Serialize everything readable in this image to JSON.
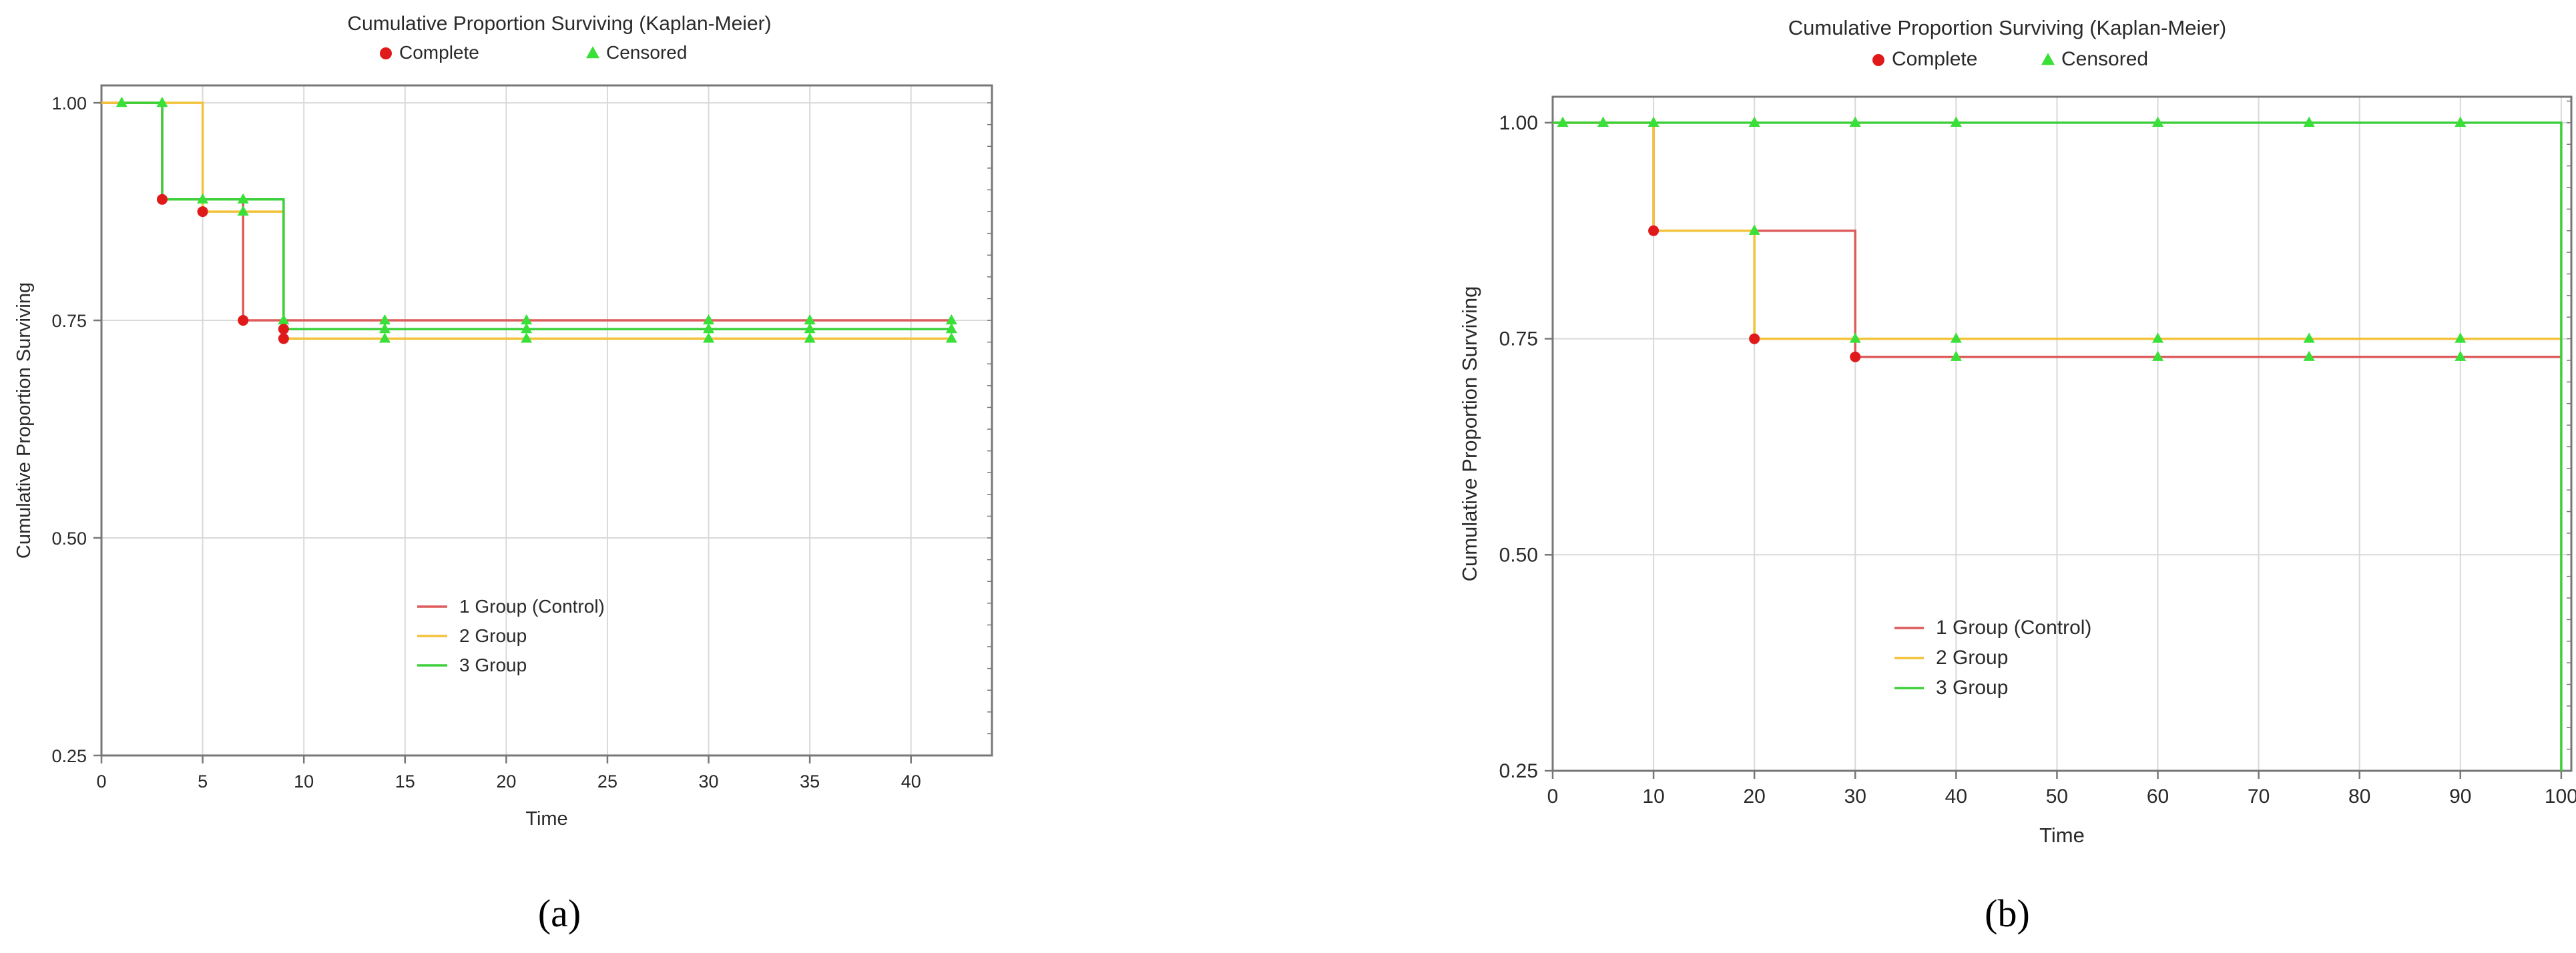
{
  "colors": {
    "group1": "#dd5b5b",
    "group2": "#f2c23a",
    "group3": "#3ccf3a",
    "complete_marker": "#e01a1a",
    "censored_marker": "#38e038",
    "grid": "#d9d9d9",
    "frame": "#777777"
  },
  "chart_data": [
    {
      "type": "line",
      "step": true,
      "panel_label": "(a)",
      "title": "Cumulative Proportion Surviving (Kaplan-Meier)",
      "marker_legend": [
        {
          "label": "Complete",
          "marker": "circle"
        },
        {
          "label": "Censored",
          "marker": "triangle"
        }
      ],
      "xlabel": "Time",
      "ylabel": "Cumulative Proportion Surviving",
      "xlim": [
        0,
        44
      ],
      "ylim": [
        0.25,
        1.02
      ],
      "xticks": [
        0,
        5,
        10,
        15,
        20,
        25,
        30,
        35,
        40
      ],
      "yticks": [
        0.25,
        0.5,
        0.75,
        1.0
      ],
      "ytick_labels": [
        "0.25",
        "0.50",
        "0.75",
        "1.00"
      ],
      "grid": true,
      "legend_position": "center-left",
      "series": [
        {
          "name": "1 Group (Control)",
          "color_key": "group1",
          "steps": [
            [
              0,
              1.0
            ],
            [
              3,
              0.889
            ],
            [
              7,
              0.75
            ],
            [
              42,
              0.75
            ]
          ],
          "complete": [
            [
              3,
              0.889
            ],
            [
              7,
              0.75
            ]
          ],
          "censored": [
            [
              9,
              0.75
            ],
            [
              14,
              0.75
            ],
            [
              21,
              0.75
            ],
            [
              30,
              0.75
            ],
            [
              35,
              0.75
            ],
            [
              42,
              0.75
            ]
          ]
        },
        {
          "name": "2 Group",
          "color_key": "group2",
          "steps": [
            [
              0,
              1.0
            ],
            [
              5,
              0.875
            ],
            [
              9,
              0.729
            ],
            [
              42,
              0.729
            ]
          ],
          "complete": [
            [
              5,
              0.875
            ],
            [
              9,
              0.729
            ]
          ],
          "censored": [
            [
              14,
              0.729
            ],
            [
              21,
              0.729
            ],
            [
              30,
              0.729
            ],
            [
              35,
              0.729
            ],
            [
              42,
              0.729
            ]
          ]
        },
        {
          "name": "3 Group",
          "color_key": "group3",
          "steps": [
            [
              1,
              1.0
            ],
            [
              3,
              0.889
            ],
            [
              9,
              0.74
            ],
            [
              42,
              0.74
            ]
          ],
          "complete": [
            [
              9,
              0.74
            ]
          ],
          "censored": [
            [
              1,
              1.0
            ],
            [
              3,
              1.0
            ],
            [
              5,
              0.889
            ],
            [
              7,
              0.889
            ],
            [
              7,
              0.875
            ],
            [
              14,
              0.74
            ],
            [
              21,
              0.74
            ],
            [
              30,
              0.74
            ],
            [
              35,
              0.74
            ],
            [
              42,
              0.74
            ]
          ]
        }
      ]
    },
    {
      "type": "line",
      "step": true,
      "panel_label": "(b)",
      "title": "Cumulative Proportion Surviving (Kaplan-Meier)",
      "marker_legend": [
        {
          "label": "Complete",
          "marker": "circle"
        },
        {
          "label": "Censored",
          "marker": "triangle"
        }
      ],
      "xlabel": "Time",
      "ylabel": "Cumulative Proportion Surviving",
      "xlim": [
        0,
        101
      ],
      "ylim": [
        0.25,
        1.03
      ],
      "xticks": [
        0,
        10,
        20,
        30,
        40,
        50,
        60,
        70,
        80,
        90,
        100
      ],
      "yticks": [
        0.25,
        0.5,
        0.75,
        1.0
      ],
      "ytick_labels": [
        "0.25",
        "0.50",
        "0.75",
        "1.00"
      ],
      "grid": true,
      "legend_position": "bottom-left",
      "series": [
        {
          "name": "1 Group (Control)",
          "color_key": "group1",
          "steps": [
            [
              0,
              1.0
            ],
            [
              10,
              0.875
            ],
            [
              30,
              0.729
            ],
            [
              100,
              0.729
            ]
          ],
          "complete": [
            [
              10,
              0.875
            ],
            [
              30,
              0.729
            ]
          ],
          "censored": [
            [
              20,
              0.875
            ],
            [
              40,
              0.729
            ],
            [
              60,
              0.729
            ],
            [
              75,
              0.729
            ],
            [
              90,
              0.729
            ]
          ]
        },
        {
          "name": "2 Group",
          "color_key": "group2",
          "steps": [
            [
              0,
              1.0
            ],
            [
              10,
              0.875
            ],
            [
              20,
              0.75
            ],
            [
              100,
              0.75
            ]
          ],
          "complete": [
            [
              20,
              0.75
            ]
          ],
          "censored": [
            [
              30,
              0.75
            ],
            [
              40,
              0.75
            ],
            [
              60,
              0.75
            ],
            [
              75,
              0.75
            ],
            [
              90,
              0.75
            ]
          ]
        },
        {
          "name": "3 Group",
          "color_key": "group3",
          "steps": [
            [
              0,
              1.0
            ],
            [
              100,
              1.0
            ],
            [
              100,
              0.25
            ]
          ],
          "complete": [],
          "censored": [
            [
              1,
              1.0
            ],
            [
              5,
              1.0
            ],
            [
              10,
              1.0
            ],
            [
              20,
              1.0
            ],
            [
              30,
              1.0
            ],
            [
              40,
              1.0
            ],
            [
              60,
              1.0
            ],
            [
              75,
              1.0
            ],
            [
              90,
              1.0
            ]
          ]
        }
      ]
    }
  ]
}
